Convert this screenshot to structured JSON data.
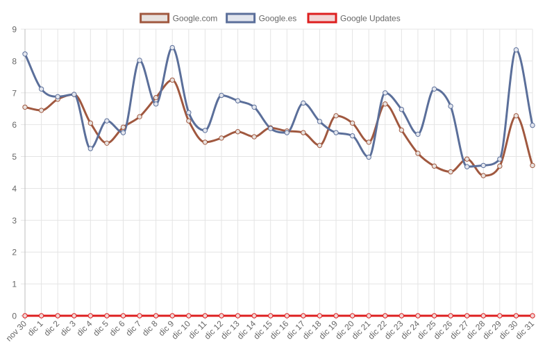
{
  "chart_data": {
    "type": "line",
    "title": "",
    "xlabel": "",
    "ylabel": "",
    "ylim": [
      0,
      9
    ],
    "y_ticks": [
      0,
      1,
      2,
      3,
      4,
      5,
      6,
      7,
      8,
      9
    ],
    "grid": true,
    "legend_position": "top-center",
    "categories": [
      "nov 30",
      "dic 1",
      "dic 2",
      "dic 3",
      "dic 4",
      "dic 5",
      "dic 6",
      "dic 7",
      "dic 8",
      "dic 9",
      "dic 10",
      "dic 11",
      "dic 12",
      "dic 13",
      "dic 14",
      "dic 15",
      "dic 16",
      "dic 17",
      "dic 18",
      "dic 19",
      "dic 20",
      "dic 21",
      "dic 22",
      "dic 23",
      "dic 24",
      "dic 25",
      "dic 26",
      "dic 27",
      "dic 28",
      "dic 29",
      "dic 30",
      "dic 31"
    ],
    "series": [
      {
        "name": "Google.com",
        "color": "#a0583f",
        "fill": "#e8e2df",
        "values": [
          6.55,
          6.45,
          6.8,
          6.95,
          6.05,
          5.42,
          5.92,
          6.25,
          6.85,
          7.4,
          6.12,
          5.45,
          5.58,
          5.78,
          5.62,
          5.9,
          5.8,
          5.75,
          5.35,
          6.28,
          6.05,
          5.45,
          6.65,
          5.83,
          5.1,
          4.7,
          4.52,
          4.92,
          4.4,
          4.7,
          6.28,
          4.72
        ]
      },
      {
        "name": "Google.es",
        "color": "#5b6f9a",
        "fill": "#e3e6ee",
        "values": [
          8.22,
          7.12,
          6.88,
          6.95,
          5.25,
          6.12,
          5.75,
          8.02,
          6.65,
          8.42,
          6.38,
          5.82,
          6.92,
          6.75,
          6.55,
          5.88,
          5.75,
          6.68,
          6.1,
          5.75,
          5.65,
          4.98,
          7.0,
          6.48,
          5.7,
          7.12,
          6.58,
          4.68,
          4.72,
          4.92,
          8.35,
          5.98
        ]
      },
      {
        "name": "Google Updates",
        "color": "#dd1f1f",
        "fill": "#f2d6d6",
        "values": [
          0,
          0,
          0,
          0,
          0,
          0,
          0,
          0,
          0,
          0,
          0,
          0,
          0,
          0,
          0,
          0,
          0,
          0,
          0,
          0,
          0,
          0,
          0,
          0,
          0,
          0,
          0,
          0,
          0,
          0,
          0,
          0
        ]
      }
    ]
  }
}
